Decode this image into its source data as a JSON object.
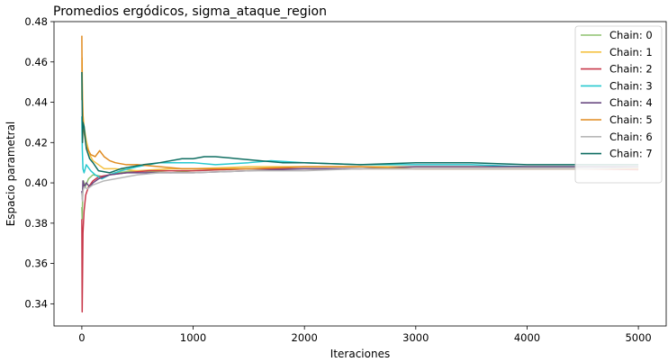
{
  "chart_data": {
    "type": "line",
    "title": "Promedios ergódicos, sigma_ataque_region",
    "xlabel": "Iteraciones",
    "ylabel": "Espacio parametral",
    "xlim": [
      -250,
      5250
    ],
    "ylim": [
      0.329,
      0.48
    ],
    "xticks": [
      0,
      1000,
      2000,
      3000,
      4000,
      5000
    ],
    "yticks": [
      0.34,
      0.36,
      0.38,
      0.4,
      0.42,
      0.44,
      0.46,
      0.48
    ],
    "ytick_labels": [
      "0.34",
      "0.36",
      "0.38",
      "0.40",
      "0.42",
      "0.44",
      "0.46",
      "0.48"
    ],
    "grid": false,
    "legend_position": "top-right",
    "series": [
      {
        "name": "Chain: 0",
        "color": "#8dc26f",
        "points": [
          [
            0,
            0.388
          ],
          [
            3,
            0.382
          ],
          [
            8,
            0.395
          ],
          [
            15,
            0.401
          ],
          [
            30,
            0.398
          ],
          [
            60,
            0.402
          ],
          [
            100,
            0.404
          ],
          [
            200,
            0.403
          ],
          [
            300,
            0.405
          ],
          [
            500,
            0.406
          ],
          [
            800,
            0.405
          ],
          [
            1000,
            0.406
          ],
          [
            1500,
            0.407
          ],
          [
            2000,
            0.407
          ],
          [
            2500,
            0.407
          ],
          [
            3000,
            0.407
          ],
          [
            3500,
            0.407
          ],
          [
            4000,
            0.407
          ],
          [
            4500,
            0.407
          ],
          [
            5000,
            0.407
          ]
        ]
      },
      {
        "name": "Chain: 1",
        "color": "#f5c242",
        "points": [
          [
            0,
            0.441
          ],
          [
            2,
            0.462
          ],
          [
            5,
            0.447
          ],
          [
            10,
            0.434
          ],
          [
            20,
            0.428
          ],
          [
            40,
            0.421
          ],
          [
            70,
            0.414
          ],
          [
            100,
            0.411
          ],
          [
            150,
            0.409
          ],
          [
            200,
            0.407
          ],
          [
            300,
            0.407
          ],
          [
            500,
            0.406
          ],
          [
            800,
            0.407
          ],
          [
            1000,
            0.407
          ],
          [
            1500,
            0.408
          ],
          [
            2000,
            0.408
          ],
          [
            2500,
            0.408
          ],
          [
            3000,
            0.408
          ],
          [
            3500,
            0.408
          ],
          [
            4000,
            0.408
          ],
          [
            4500,
            0.408
          ],
          [
            5000,
            0.408
          ]
        ]
      },
      {
        "name": "Chain: 2",
        "color": "#c8384a",
        "points": [
          [
            0,
            0.382
          ],
          [
            3,
            0.336
          ],
          [
            6,
            0.352
          ],
          [
            10,
            0.375
          ],
          [
            20,
            0.386
          ],
          [
            35,
            0.394
          ],
          [
            60,
            0.398
          ],
          [
            100,
            0.401
          ],
          [
            150,
            0.403
          ],
          [
            250,
            0.404
          ],
          [
            400,
            0.405
          ],
          [
            600,
            0.406
          ],
          [
            800,
            0.406
          ],
          [
            1000,
            0.406
          ],
          [
            1500,
            0.407
          ],
          [
            2000,
            0.407
          ],
          [
            2500,
            0.407
          ],
          [
            3000,
            0.407
          ],
          [
            3500,
            0.407
          ],
          [
            4000,
            0.407
          ],
          [
            4500,
            0.407
          ],
          [
            5000,
            0.4065
          ]
        ]
      },
      {
        "name": "Chain: 3",
        "color": "#27c9cf",
        "points": [
          [
            0,
            0.433
          ],
          [
            4,
            0.417
          ],
          [
            10,
            0.407
          ],
          [
            20,
            0.405
          ],
          [
            40,
            0.409
          ],
          [
            80,
            0.406
          ],
          [
            120,
            0.404
          ],
          [
            180,
            0.402
          ],
          [
            250,
            0.404
          ],
          [
            350,
            0.406
          ],
          [
            500,
            0.408
          ],
          [
            700,
            0.41
          ],
          [
            900,
            0.41
          ],
          [
            1000,
            0.41
          ],
          [
            1200,
            0.409
          ],
          [
            1500,
            0.41
          ],
          [
            1700,
            0.411
          ],
          [
            2000,
            0.41
          ],
          [
            2500,
            0.409
          ],
          [
            3000,
            0.409
          ],
          [
            3500,
            0.409
          ],
          [
            4000,
            0.408
          ],
          [
            4500,
            0.408
          ],
          [
            5000,
            0.408
          ]
        ]
      },
      {
        "name": "Chain: 4",
        "color": "#6b4a82",
        "points": [
          [
            0,
            0.396
          ],
          [
            5,
            0.392
          ],
          [
            10,
            0.401
          ],
          [
            20,
            0.398
          ],
          [
            40,
            0.4
          ],
          [
            70,
            0.398
          ],
          [
            100,
            0.4
          ],
          [
            150,
            0.402
          ],
          [
            250,
            0.404
          ],
          [
            400,
            0.405
          ],
          [
            600,
            0.405
          ],
          [
            800,
            0.405
          ],
          [
            1000,
            0.405
          ],
          [
            1500,
            0.406
          ],
          [
            2000,
            0.407
          ],
          [
            2500,
            0.407
          ],
          [
            3000,
            0.408
          ],
          [
            3500,
            0.408
          ],
          [
            4000,
            0.408
          ],
          [
            4500,
            0.408
          ],
          [
            5000,
            0.408
          ]
        ]
      },
      {
        "name": "Chain: 5",
        "color": "#e08a1e",
        "points": [
          [
            0,
            0.473
          ],
          [
            2,
            0.455
          ],
          [
            5,
            0.442
          ],
          [
            10,
            0.431
          ],
          [
            20,
            0.425
          ],
          [
            40,
            0.418
          ],
          [
            80,
            0.414
          ],
          [
            120,
            0.413
          ],
          [
            160,
            0.416
          ],
          [
            200,
            0.413
          ],
          [
            250,
            0.411
          ],
          [
            300,
            0.41
          ],
          [
            400,
            0.409
          ],
          [
            500,
            0.409
          ],
          [
            700,
            0.408
          ],
          [
            900,
            0.407
          ],
          [
            1000,
            0.407
          ],
          [
            1500,
            0.407
          ],
          [
            2000,
            0.408
          ],
          [
            2500,
            0.408
          ],
          [
            3000,
            0.407
          ],
          [
            3500,
            0.407
          ],
          [
            4000,
            0.407
          ],
          [
            4500,
            0.407
          ],
          [
            5000,
            0.407
          ]
        ]
      },
      {
        "name": "Chain: 6",
        "color": "#b7b7b7",
        "points": [
          [
            0,
            0.395
          ],
          [
            5,
            0.391
          ],
          [
            10,
            0.396
          ],
          [
            20,
            0.398
          ],
          [
            50,
            0.397
          ],
          [
            100,
            0.399
          ],
          [
            200,
            0.401
          ],
          [
            300,
            0.402
          ],
          [
            400,
            0.403
          ],
          [
            500,
            0.404
          ],
          [
            700,
            0.405
          ],
          [
            900,
            0.405
          ],
          [
            1000,
            0.405
          ],
          [
            1500,
            0.406
          ],
          [
            2000,
            0.406
          ],
          [
            2500,
            0.407
          ],
          [
            3000,
            0.407
          ],
          [
            3500,
            0.407
          ],
          [
            4000,
            0.407
          ],
          [
            4500,
            0.407
          ],
          [
            5000,
            0.4075
          ]
        ]
      },
      {
        "name": "Chain: 7",
        "color": "#0f6e62",
        "points": [
          [
            0,
            0.455
          ],
          [
            3,
            0.44
          ],
          [
            6,
            0.42
          ],
          [
            10,
            0.43
          ],
          [
            20,
            0.428
          ],
          [
            40,
            0.417
          ],
          [
            70,
            0.412
          ],
          [
            100,
            0.41
          ],
          [
            150,
            0.406
          ],
          [
            250,
            0.405
          ],
          [
            350,
            0.407
          ],
          [
            450,
            0.408
          ],
          [
            550,
            0.409
          ],
          [
            700,
            0.41
          ],
          [
            900,
            0.412
          ],
          [
            1000,
            0.412
          ],
          [
            1100,
            0.413
          ],
          [
            1200,
            0.413
          ],
          [
            1400,
            0.412
          ],
          [
            1600,
            0.411
          ],
          [
            1800,
            0.41
          ],
          [
            2000,
            0.41
          ],
          [
            2500,
            0.409
          ],
          [
            3000,
            0.41
          ],
          [
            3500,
            0.41
          ],
          [
            4000,
            0.409
          ],
          [
            4500,
            0.409
          ],
          [
            5000,
            0.409
          ]
        ]
      }
    ]
  }
}
